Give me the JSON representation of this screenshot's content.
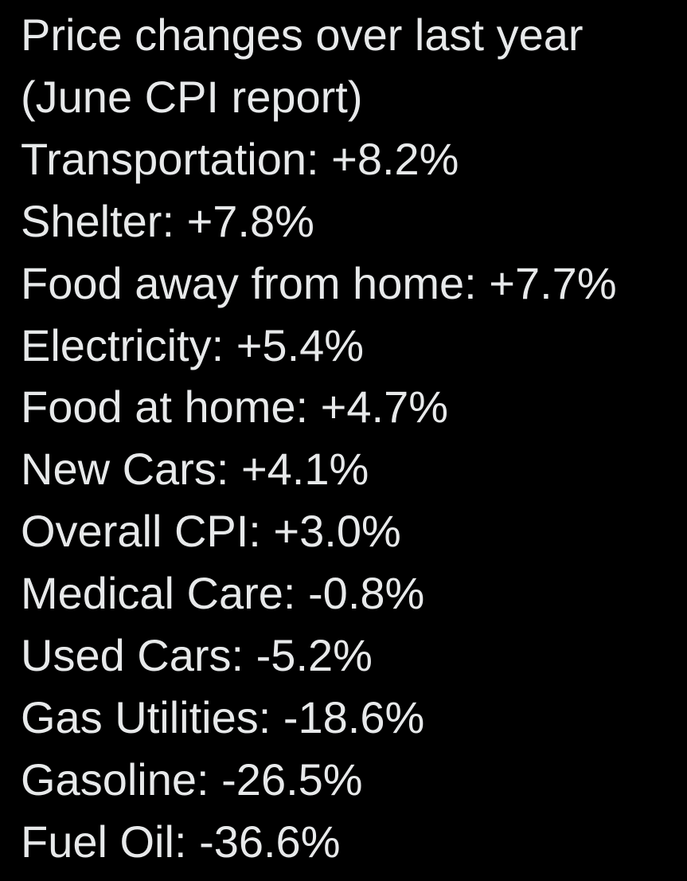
{
  "post": {
    "title_lines": [
      "Price changes over last year",
      "(June CPI report)"
    ],
    "items": [
      {
        "category": "Transportation",
        "change": "+8.2%"
      },
      {
        "category": "Shelter",
        "change": "+7.8%"
      },
      {
        "category": "Food away from home",
        "change": "+7.7%"
      },
      {
        "category": "Electricity",
        "change": "+5.4%"
      },
      {
        "category": "Food at home",
        "change": "+4.7%"
      },
      {
        "category": "New Cars",
        "change": "+4.1%"
      },
      {
        "category": "Overall CPI",
        "change": "+3.0%"
      },
      {
        "category": "Medical Care",
        "change": "-0.8%"
      },
      {
        "category": "Used Cars",
        "change": "-5.2%"
      },
      {
        "category": "Gas Utilities",
        "change": "-18.6%"
      },
      {
        "category": "Gasoline",
        "change": "-26.5%"
      },
      {
        "category": "Fuel Oil",
        "change": "-36.6%"
      }
    ]
  },
  "colors": {
    "background": "#000000",
    "text": "#e7e9ea"
  }
}
